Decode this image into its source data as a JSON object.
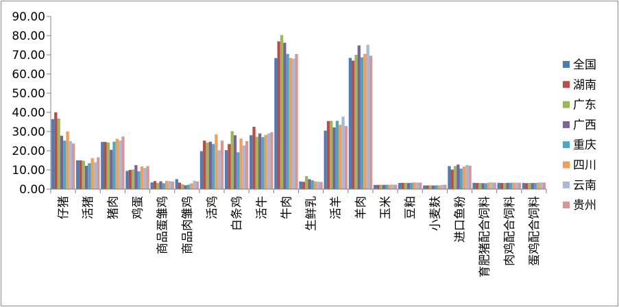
{
  "chart_data": {
    "type": "bar",
    "ylim": [
      0,
      90
    ],
    "ytick_step": 10,
    "ytick_labels": [
      "0.00",
      "10.00",
      "20.00",
      "30.00",
      "40.00",
      "50.00",
      "60.00",
      "70.00",
      "80.00",
      "90.00"
    ],
    "grid": false,
    "legend_position": "right",
    "categories": [
      "仔猪",
      "活猪",
      "猪肉",
      "鸡蛋",
      "商品蛋雏鸡",
      "商品肉雏鸡",
      "活鸡",
      "白条鸡",
      "活牛",
      "牛肉",
      "生鲜乳",
      "活羊",
      "羊肉",
      "玉米",
      "豆粕",
      "小麦麸",
      "进口鱼粉",
      "育肥猪配合饲料",
      "肉鸡配合饲料",
      "蛋鸡配合饲料"
    ],
    "series": [
      {
        "name": "全国",
        "color": "#4a7ebb",
        "values": [
          36.5,
          15.0,
          24.6,
          9.5,
          3.5,
          5.2,
          19.8,
          20.3,
          28.1,
          68.3,
          4.0,
          30.5,
          68.4,
          2.2,
          3.2,
          1.9,
          12.0,
          3.3,
          3.3,
          3.2
        ]
      },
      {
        "name": "湖南",
        "color": "#be4b48",
        "values": [
          40.0,
          15.0,
          24.6,
          10.0,
          4.2,
          3.4,
          25.3,
          23.5,
          32.5,
          77.0,
          3.8,
          35.5,
          67.0,
          2.2,
          3.3,
          1.9,
          10.2,
          3.2,
          3.2,
          3.1
        ]
      },
      {
        "name": "广东",
        "color": "#98b954",
        "values": [
          36.8,
          14.8,
          24.3,
          10.2,
          3.2,
          2.5,
          24.2,
          30.2,
          27.3,
          80.3,
          6.8,
          35.6,
          70.0,
          2.3,
          3.3,
          2.0,
          12.0,
          3.2,
          3.2,
          3.2
        ]
      },
      {
        "name": "广西",
        "color": "#7d60a0",
        "values": [
          27.8,
          12.2,
          20.5,
          12.5,
          4.1,
          2.0,
          24.7,
          28.1,
          29.0,
          76.3,
          5.2,
          32.2,
          74.9,
          2.2,
          3.2,
          1.9,
          12.8,
          3.1,
          3.3,
          3.2
        ]
      },
      {
        "name": "重庆",
        "color": "#46aac5",
        "values": [
          25.3,
          13.5,
          24.7,
          9.3,
          3.1,
          2.3,
          23.5,
          19.2,
          27.1,
          70.5,
          4.6,
          35.6,
          68.7,
          2.3,
          3.3,
          2.0,
          10.7,
          3.1,
          3.3,
          3.2
        ]
      },
      {
        "name": "四川",
        "color": "#f59d56",
        "values": [
          30.1,
          16.1,
          26.2,
          11.8,
          4.3,
          3.0,
          28.5,
          26.3,
          28.3,
          68.4,
          4.0,
          33.5,
          70.5,
          2.3,
          3.5,
          2.0,
          11.8,
          3.4,
          3.4,
          3.4
        ]
      },
      {
        "name": "云南",
        "color": "#a5b9db",
        "values": [
          25.0,
          14.0,
          25.3,
          11.0,
          4.2,
          4.4,
          20.3,
          22.8,
          29.0,
          68.0,
          3.9,
          37.8,
          75.2,
          2.4,
          3.4,
          2.2,
          12.6,
          3.6,
          3.4,
          3.5
        ]
      },
      {
        "name": "贵州",
        "color": "#d99694",
        "values": [
          23.8,
          16.6,
          27.4,
          12.0,
          4.0,
          4.0,
          25.3,
          25.0,
          29.7,
          70.4,
          3.7,
          32.9,
          69.5,
          2.3,
          3.4,
          2.3,
          12.2,
          3.4,
          3.3,
          3.4
        ]
      }
    ]
  }
}
